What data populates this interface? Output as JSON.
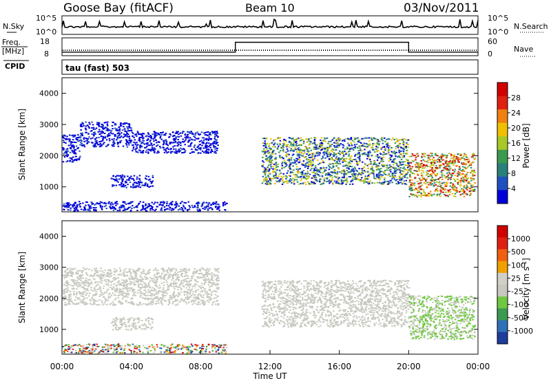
{
  "header": {
    "station": "Goose Bay (fitACF)",
    "beam": "Beam 10",
    "date": "03/Nov/2011"
  },
  "noise_panel": {
    "left_label": "N.Sky",
    "left_ticks": [
      "10^5",
      "10^0"
    ],
    "right_label": "N.Search",
    "right_ticks": [
      "10^5",
      "10^0"
    ]
  },
  "freq_panel": {
    "left_label_1": "Freq.",
    "left_label_2": "[MHz]",
    "left_ticks": [
      "18",
      "8"
    ],
    "right_label": "Nave",
    "right_ticks": [
      "60",
      "0"
    ]
  },
  "cpid": {
    "label": "CPID",
    "mode": "tau (fast) 503"
  },
  "colors": {
    "power_scale": [
      "#0000d8",
      "#2050c0",
      "#2a7f7a",
      "#3a9a50",
      "#a8c828",
      "#f0c000",
      "#f08010",
      "#e02010",
      "#d00000"
    ],
    "velocity_scale": [
      "#1e3c9c",
      "#3070b8",
      "#3a9a50",
      "#70c840",
      "#c8c8c0",
      "#d0d0c8",
      "#f0a000",
      "#f06010",
      "#e02010",
      "#d00000"
    ]
  },
  "chart_data": [
    {
      "type": "heatmap",
      "name": "power",
      "xlabel": "",
      "ylabel": "Slant Range [km]",
      "x_range_hours": [
        0,
        24
      ],
      "ylim": [
        200,
        4500
      ],
      "yticks": [
        "1000",
        "2000",
        "3000",
        "4000"
      ],
      "colorbar": {
        "label": "Power [dB]",
        "ticks": [
          "28",
          "24",
          "20",
          "16",
          "12",
          "8",
          "4"
        ],
        "range": [
          0,
          32
        ]
      },
      "echo_regions": [
        {
          "t": [
            0,
            1.0
          ],
          "range": [
            1800,
            2700
          ],
          "level": "low"
        },
        {
          "t": [
            1.0,
            4.0
          ],
          "range": [
            2300,
            3100
          ],
          "level": "low"
        },
        {
          "t": [
            4.0,
            9.0
          ],
          "range": [
            2100,
            2800
          ],
          "level": "low"
        },
        {
          "t": [
            2.8,
            5.2
          ],
          "range": [
            1000,
            1400
          ],
          "level": "low"
        },
        {
          "t": [
            0,
            9.5
          ],
          "range": [
            250,
            550
          ],
          "level": "low"
        },
        {
          "t": [
            11.5,
            20.0
          ],
          "range": [
            1100,
            2600
          ],
          "level": "mixed"
        },
        {
          "t": [
            20.0,
            23.8
          ],
          "range": [
            700,
            2100
          ],
          "level": "high"
        }
      ]
    },
    {
      "type": "heatmap",
      "name": "velocity",
      "xlabel": "Time UT",
      "ylabel": "Slant Range [km]",
      "x_range_hours": [
        0,
        24
      ],
      "xticks": [
        "00:00",
        "04:00",
        "08:00",
        "12:00",
        "16:00",
        "20:00",
        "00:00"
      ],
      "ylim": [
        200,
        4500
      ],
      "yticks": [
        "1000",
        "2000",
        "3000",
        "4000"
      ],
      "colorbar": {
        "label": "Velocity [m s^-1]",
        "ticks": [
          "1000",
          "500",
          "100",
          "25",
          "-25",
          "-100",
          "-500",
          "-1000"
        ]
      },
      "echo_regions": [
        {
          "t": [
            0,
            9.0
          ],
          "range": [
            1800,
            3000
          ],
          "velocity": "ground-scatter"
        },
        {
          "t": [
            2.8,
            5.2
          ],
          "range": [
            1000,
            1400
          ],
          "velocity": "ground-scatter"
        },
        {
          "t": [
            0,
            9.5
          ],
          "range": [
            250,
            550
          ],
          "velocity": "mixed"
        },
        {
          "t": [
            11.5,
            20.0
          ],
          "range": [
            1100,
            2600
          ],
          "velocity": "ground-scatter"
        },
        {
          "t": [
            20.0,
            23.8
          ],
          "range": [
            700,
            2100
          ],
          "velocity": "positive-low"
        }
      ]
    }
  ],
  "frequency_series": {
    "t": [
      0,
      10,
      10,
      20,
      20,
      24
    ],
    "mhz": [
      10,
      10,
      15.5,
      15.5,
      10,
      10
    ]
  }
}
